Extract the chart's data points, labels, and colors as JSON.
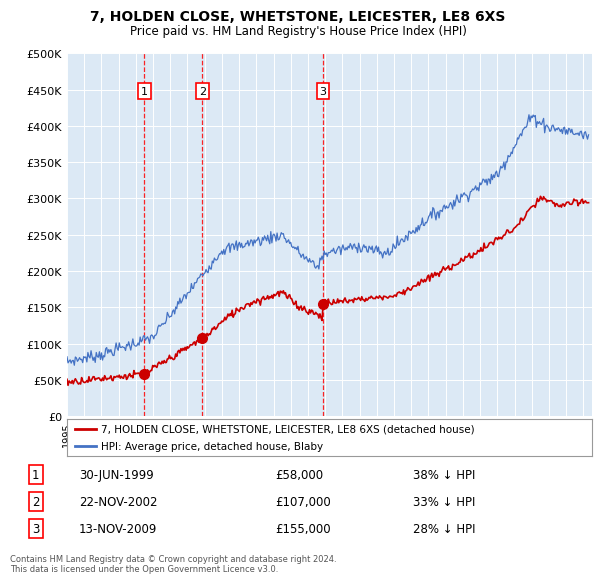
{
  "title": "7, HOLDEN CLOSE, WHETSTONE, LEICESTER, LE8 6XS",
  "subtitle": "Price paid vs. HM Land Registry's House Price Index (HPI)",
  "ylim": [
    0,
    500000
  ],
  "yticks": [
    0,
    50000,
    100000,
    150000,
    200000,
    250000,
    300000,
    350000,
    400000,
    450000,
    500000
  ],
  "plot_bg": "#dce9f5",
  "transactions": [
    {
      "num": 1,
      "date": "30-JUN-1999",
      "price": 58000,
      "pct": "38% ↓ HPI",
      "x_year": 1999.5
    },
    {
      "num": 2,
      "date": "22-NOV-2002",
      "price": 107000,
      "pct": "33% ↓ HPI",
      "x_year": 2002.87
    },
    {
      "num": 3,
      "date": "13-NOV-2009",
      "price": 155000,
      "pct": "28% ↓ HPI",
      "x_year": 2009.87
    }
  ],
  "legend_property_label": "7, HOLDEN CLOSE, WHETSTONE, LEICESTER, LE8 6XS (detached house)",
  "legend_hpi_label": "HPI: Average price, detached house, Blaby",
  "property_color": "#cc0000",
  "hpi_color": "#4472c4",
  "footnote": "Contains HM Land Registry data © Crown copyright and database right 2024.\nThis data is licensed under the Open Government Licence v3.0.",
  "xmin": 1995,
  "xmax": 2025.5
}
